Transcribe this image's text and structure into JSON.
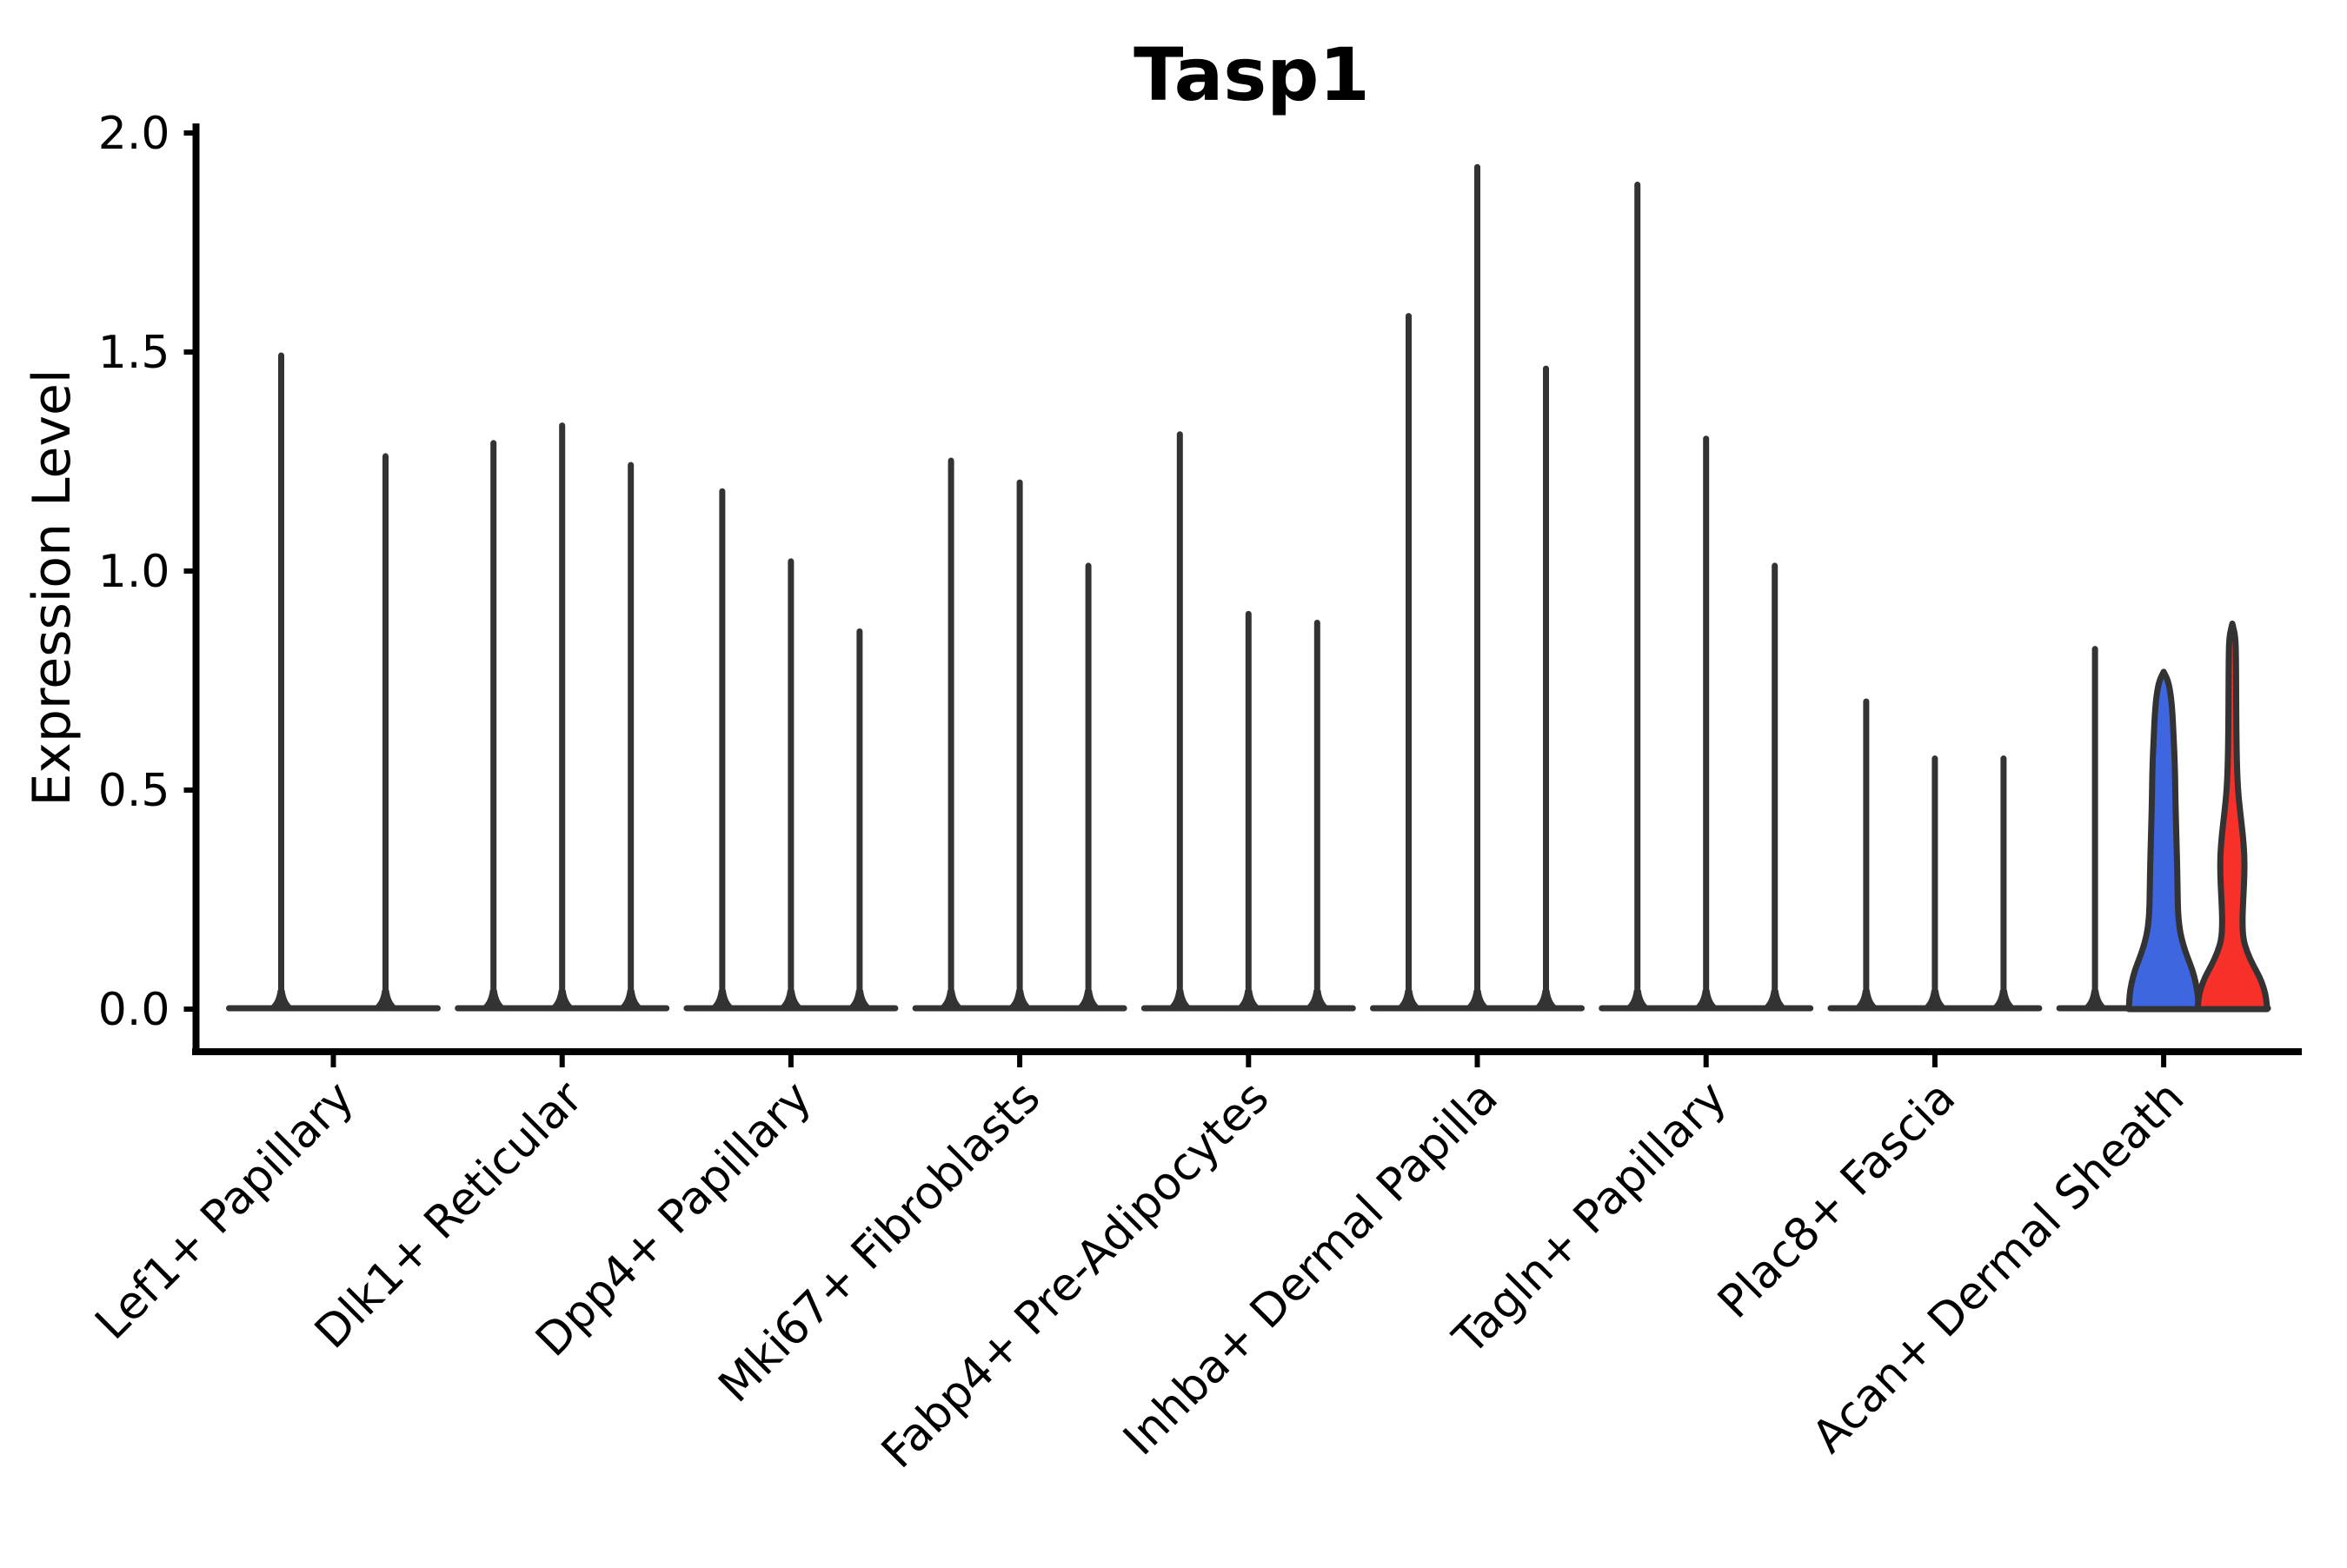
{
  "chart_data": {
    "type": "violin",
    "title": "Tasp1",
    "ylabel": "Expression Level",
    "xlabel": "",
    "ylim": [
      0.0,
      2.0
    ],
    "y_ticks": [
      {
        "value": 0.0,
        "label": "0.0"
      },
      {
        "value": 0.5,
        "label": "0.5"
      },
      {
        "value": 1.0,
        "label": "1.0"
      },
      {
        "value": 1.5,
        "label": "1.5"
      },
      {
        "value": 2.0,
        "label": "2.0"
      }
    ],
    "grid": false,
    "legend": "none",
    "categories": [
      "Lef1+ Papillary",
      "Dlk1+ Reticular",
      "Dpp4+ Papillary",
      "Mki67+ Fibroblasts",
      "Fabp4+ Pre-Adipocytes",
      "Inhba+ Dermal Papilla",
      "Tagln+ Papillary",
      "Plac8+ Fascia",
      "Acan+ Dermal Sheath"
    ],
    "groups": [
      {
        "category": "Lef1+ Papillary",
        "violins": [
          {
            "style": "spike",
            "max": 1.5,
            "offset": -60
          },
          {
            "style": "spike",
            "max": 1.27,
            "offset": 60
          }
        ]
      },
      {
        "category": "Dlk1+ Reticular",
        "violins": [
          {
            "style": "spike",
            "max": 1.3,
            "offset": -79
          },
          {
            "style": "spike",
            "max": 1.34,
            "offset": 0
          },
          {
            "style": "spike",
            "max": 1.25,
            "offset": 79
          }
        ]
      },
      {
        "category": "Dpp4+ Papillary",
        "violins": [
          {
            "style": "spike",
            "max": 1.19,
            "offset": -79
          },
          {
            "style": "spike",
            "max": 1.03,
            "offset": 0
          },
          {
            "style": "spike",
            "max": 0.87,
            "offset": 79
          }
        ]
      },
      {
        "category": "Mki67+ Fibroblasts",
        "violins": [
          {
            "style": "spike",
            "max": 1.26,
            "offset": -79
          },
          {
            "style": "spike",
            "max": 1.21,
            "offset": 0
          },
          {
            "style": "spike",
            "max": 1.02,
            "offset": 79
          }
        ]
      },
      {
        "category": "Fabp4+ Pre-Adipocytes",
        "violins": [
          {
            "style": "spike",
            "max": 1.32,
            "offset": -79
          },
          {
            "style": "spike",
            "max": 0.91,
            "offset": 0
          },
          {
            "style": "spike",
            "max": 0.89,
            "offset": 79
          }
        ]
      },
      {
        "category": "Inhba+ Dermal Papilla",
        "violins": [
          {
            "style": "spike",
            "max": 1.59,
            "offset": -79
          },
          {
            "style": "spike",
            "max": 1.93,
            "offset": 0
          },
          {
            "style": "spike",
            "max": 1.47,
            "offset": 79
          }
        ]
      },
      {
        "category": "Tagln+ Papillary",
        "violins": [
          {
            "style": "spike",
            "max": 1.89,
            "offset": -79
          },
          {
            "style": "spike",
            "max": 1.31,
            "offset": 0
          },
          {
            "style": "spike",
            "max": 1.02,
            "offset": 79
          }
        ]
      },
      {
        "category": "Plac8+ Fascia",
        "violins": [
          {
            "style": "spike",
            "max": 0.71,
            "offset": -79
          },
          {
            "style": "spike",
            "max": 0.58,
            "offset": 0
          },
          {
            "style": "spike",
            "max": 0.58,
            "offset": 79
          }
        ]
      },
      {
        "category": "Acan+ Dermal Sheath",
        "violins": [
          {
            "style": "spike",
            "max": 0.83,
            "offset": -79
          },
          {
            "style": "violin",
            "max": 0.77,
            "offset": 0,
            "fill": "#3E66E0",
            "profile": "blue"
          },
          {
            "style": "violin",
            "max": 0.88,
            "offset": 79,
            "fill": "#F73029",
            "profile": "red"
          }
        ]
      }
    ],
    "profiles": {
      "blue": [
        [
          0.0,
          40
        ],
        [
          0.03,
          39.5
        ],
        [
          0.06,
          37
        ],
        [
          0.09,
          33
        ],
        [
          0.12,
          27
        ],
        [
          0.15,
          22
        ],
        [
          0.18,
          18.5
        ],
        [
          0.22,
          16.5
        ],
        [
          0.27,
          16
        ],
        [
          0.33,
          15.5
        ],
        [
          0.4,
          14.5
        ],
        [
          0.48,
          13.5
        ],
        [
          0.55,
          13
        ],
        [
          0.62,
          11.5
        ],
        [
          0.68,
          10
        ],
        [
          0.72,
          8
        ],
        [
          0.75,
          5
        ],
        [
          0.77,
          0
        ]
      ],
      "red": [
        [
          0.0,
          40
        ],
        [
          0.025,
          39
        ],
        [
          0.05,
          36
        ],
        [
          0.075,
          31
        ],
        [
          0.1,
          24
        ],
        [
          0.13,
          17
        ],
        [
          0.16,
          12.5
        ],
        [
          0.2,
          11.5
        ],
        [
          0.25,
          12.5
        ],
        [
          0.3,
          13.8
        ],
        [
          0.35,
          14
        ],
        [
          0.4,
          12
        ],
        [
          0.45,
          9
        ],
        [
          0.5,
          6.5
        ],
        [
          0.56,
          5.2
        ],
        [
          0.64,
          4.6
        ],
        [
          0.72,
          4.4
        ],
        [
          0.8,
          4.2
        ],
        [
          0.85,
          3.6
        ],
        [
          0.88,
          0
        ]
      ]
    },
    "colors": {
      "spike": "#333333",
      "violin_outline": "#333333",
      "axis": "#000000",
      "text": "#000000",
      "split_blue": "#3E66E0",
      "split_red": "#F73029",
      "background": "#ffffff"
    }
  }
}
